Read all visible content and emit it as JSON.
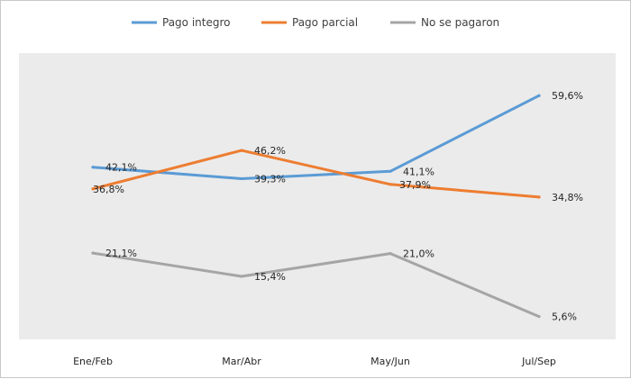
{
  "chart_data": {
    "type": "line",
    "categories": [
      "Ene/Feb",
      "Mar/Abr",
      "May/Jun",
      "Jul/Sep"
    ],
    "series": [
      {
        "name": "Pago integro",
        "values": [
          42.1,
          39.3,
          41.1,
          59.6
        ],
        "labels": [
          "42,1%",
          "39,3%",
          "41,1%",
          "59,6%"
        ],
        "color": "#5b9bd5"
      },
      {
        "name": "Pago parcial",
        "values": [
          36.8,
          46.2,
          37.9,
          34.8
        ],
        "labels": [
          "36,8%",
          "46,2%",
          "37,9%",
          "34,8%"
        ],
        "color": "#ed7d31"
      },
      {
        "name": "No se pagaron",
        "values": [
          21.1,
          15.4,
          21.0,
          5.6
        ],
        "labels": [
          "21,1%",
          "15,4%",
          "21,0%",
          "5,6%"
        ],
        "color": "#a5a5a5"
      }
    ],
    "ylim": [
      0,
      70
    ],
    "grid": false,
    "legend_position": "top",
    "plot_background": "#ebebeb"
  }
}
